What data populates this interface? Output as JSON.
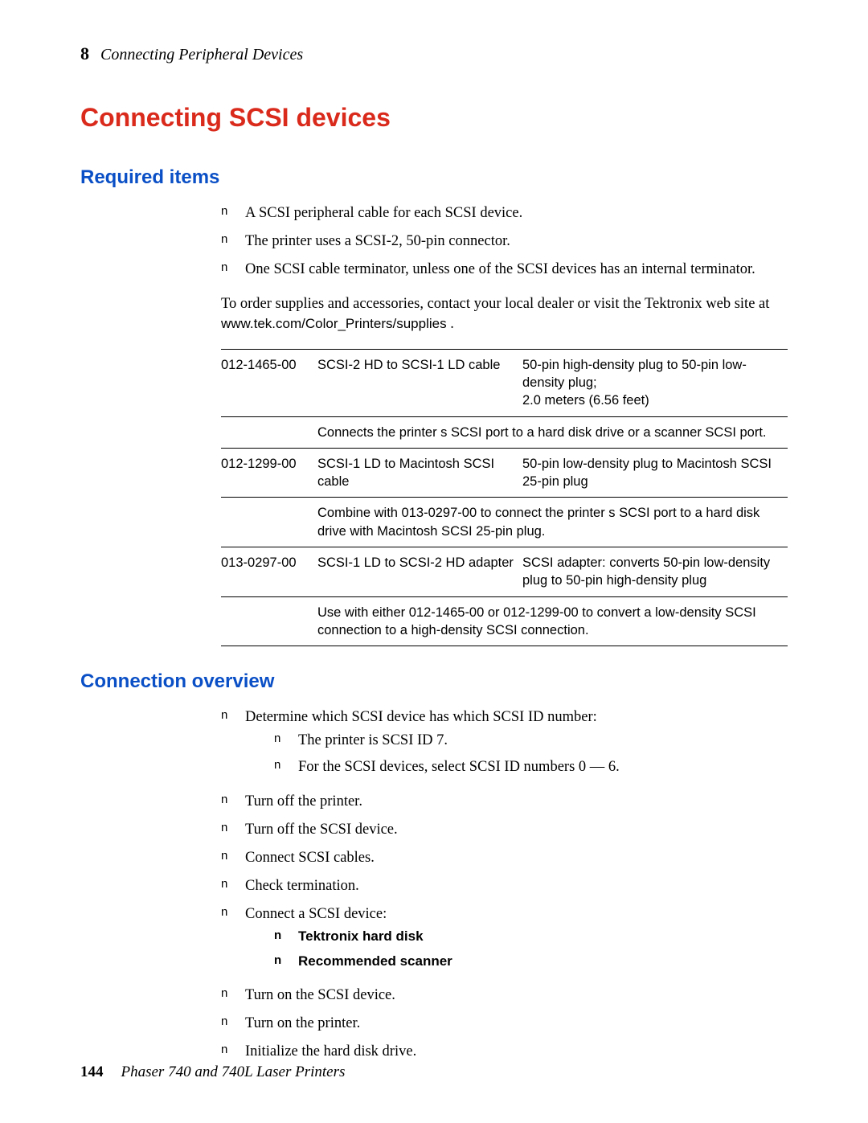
{
  "header": {
    "chapter_num": "8",
    "chapter_title": "Connecting Peripheral Devices"
  },
  "main_title": "Connecting SCSI devices",
  "required": {
    "title": "Required items",
    "bullets": [
      "A SCSI peripheral cable for each SCSI device.",
      "The printer uses a SCSI-2, 50-pin connector.",
      "One SCSI cable terminator, unless one of the SCSI devices has an internal terminator."
    ],
    "order_text_pre": "To order supplies and accessories, contact your local dealer or visit the Tektronix web site at ",
    "order_url": "www.tek.com/Color_Printers/supplies",
    "order_text_post": "    ."
  },
  "table": {
    "rows": [
      {
        "pn": "012-1465-00",
        "desc": "SCSI-2 HD to SCSI-1 LD cable",
        "spec": "50-pin high-density plug to 50-pin low-density plug;\n2.0 meters (6.56 feet)",
        "note": "Connects the printer s SCSI port to a hard disk drive or a scanner SCSI port."
      },
      {
        "pn": "012-1299-00",
        "desc": "SCSI-1 LD to Macintosh SCSI cable",
        "spec": "50-pin low-density plug to Macintosh SCSI 25-pin plug",
        "note": "Combine with 013-0297-00 to connect the printer s SCSI port to a hard disk drive with Macintosh SCSI 25-pin plug."
      },
      {
        "pn": "013-0297-00",
        "desc": "SCSI-1 LD to SCSI-2 HD adapter",
        "spec": "SCSI adapter:  converts 50-pin low-density plug to 50-pin high-density plug",
        "note": "Use with either 012-1465-00 or 012-1299-00 to convert a low-density SCSI connection to a high-density SCSI connection."
      }
    ]
  },
  "overview": {
    "title": "Connection overview",
    "items": [
      {
        "text": "Determine which SCSI device has which SCSI ID number:",
        "sub": [
          "The printer is SCSI ID 7.",
          "For the SCSI devices, select SCSI ID numbers 0 — 6."
        ]
      },
      {
        "text": "Turn off the printer."
      },
      {
        "text": "Turn off the SCSI device."
      },
      {
        "text": "Connect SCSI cables."
      },
      {
        "text": "Check termination."
      },
      {
        "text": "Connect a SCSI device:",
        "sub_bold": [
          "Tektronix hard disk",
          "Recommended scanner"
        ]
      },
      {
        "text": "Turn on the SCSI device."
      },
      {
        "text": "Turn on the printer."
      },
      {
        "text": "Initialize the hard disk drive."
      }
    ]
  },
  "footer": {
    "page": "144",
    "title": "Phaser 740 and 740L Laser Printers"
  },
  "colors": {
    "red": "#d92a1c",
    "blue": "#0a4fc6",
    "text": "#000000",
    "bg": "#ffffff"
  }
}
